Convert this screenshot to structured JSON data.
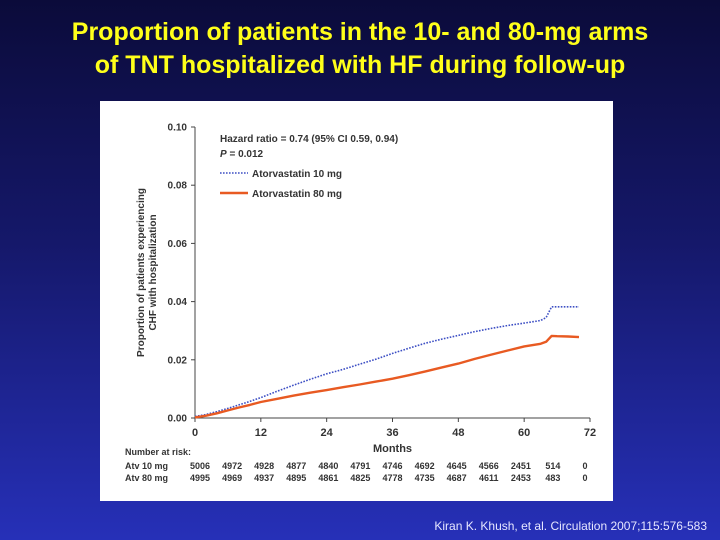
{
  "slide": {
    "title_line1": "Proportion of patients in the 10- and 80-mg arms",
    "title_line2": "of TNT hospitalized with HF during follow-up",
    "citation": "Kiran K. Khush, et al. Circulation 2007;115:576-583"
  },
  "colors": {
    "background_top": "#0b0b3a",
    "background_bottom": "#2630b8",
    "title": "#ffff1a",
    "series_10mg": "#3d4fc4",
    "series_80mg": "#e85a22"
  },
  "chart_data": {
    "type": "line",
    "title": "",
    "xlabel": "Months",
    "ylabel_line1": "Proportion of patients experiencing",
    "ylabel_line2": "CHF with hospitalization",
    "xlim": [
      0,
      72
    ],
    "ylim": [
      0,
      0.1
    ],
    "x_ticks": [
      0,
      12,
      24,
      36,
      48,
      60,
      72
    ],
    "x_tick_labels": [
      "0",
      "12",
      "24",
      "36",
      "48",
      "60",
      "72"
    ],
    "y_ticks": [
      0,
      0.02,
      0.04,
      0.06,
      0.08,
      0.1
    ],
    "y_tick_labels": [
      "0.00",
      "0.02",
      "0.04",
      "0.06",
      "0.08",
      "0.10"
    ],
    "grid": false,
    "annotation": {
      "hazard_ratio": "Hazard ratio = 0.74 (95% CI 0.59, 0.94)",
      "p_label": "P",
      "p_value": " = 0.012"
    },
    "legend_position": "top-left",
    "series": [
      {
        "name": "Atorvastatin 10 mg",
        "style": "dotted",
        "x": [
          0,
          2,
          4,
          6,
          8,
          10,
          12,
          15,
          18,
          21,
          24,
          27,
          30,
          33,
          36,
          39,
          42,
          45,
          48,
          51,
          54,
          57,
          60,
          63,
          64,
          65,
          66,
          68,
          70
        ],
        "y": [
          0.0005,
          0.0012,
          0.0022,
          0.0033,
          0.0045,
          0.0057,
          0.007,
          0.0092,
          0.0113,
          0.0133,
          0.0152,
          0.0167,
          0.0185,
          0.0202,
          0.0222,
          0.024,
          0.0257,
          0.0271,
          0.0284,
          0.0297,
          0.0308,
          0.0318,
          0.0326,
          0.0335,
          0.0345,
          0.0382,
          0.0382,
          0.0382,
          0.0382
        ]
      },
      {
        "name": "Atorvastatin 80 mg",
        "style": "solid",
        "x": [
          0,
          2,
          4,
          6,
          8,
          10,
          12,
          15,
          18,
          21,
          24,
          27,
          30,
          33,
          36,
          39,
          42,
          45,
          48,
          51,
          54,
          57,
          60,
          63,
          64,
          65,
          66,
          68,
          70
        ],
        "y": [
          0.0002,
          0.0008,
          0.0016,
          0.0026,
          0.0036,
          0.0045,
          0.0055,
          0.0066,
          0.0077,
          0.0087,
          0.0096,
          0.0106,
          0.0115,
          0.0125,
          0.0135,
          0.0147,
          0.016,
          0.0174,
          0.0187,
          0.0203,
          0.0218,
          0.0232,
          0.0246,
          0.0255,
          0.0262,
          0.0282,
          0.0281,
          0.028,
          0.0278
        ]
      }
    ],
    "number_at_risk": {
      "label": "Number at risk:",
      "rows": [
        {
          "name": "Atv 10 mg",
          "values": [
            "5006",
            "4972",
            "4928",
            "4877",
            "4840",
            "4791",
            "4746",
            "4692",
            "4645",
            "4566",
            "2451",
            "514",
            "0"
          ]
        },
        {
          "name": "Atv 80 mg",
          "values": [
            "4995",
            "4969",
            "4937",
            "4895",
            "4861",
            "4825",
            "4778",
            "4735",
            "4687",
            "4611",
            "2453",
            "483",
            "0"
          ]
        }
      ]
    }
  }
}
